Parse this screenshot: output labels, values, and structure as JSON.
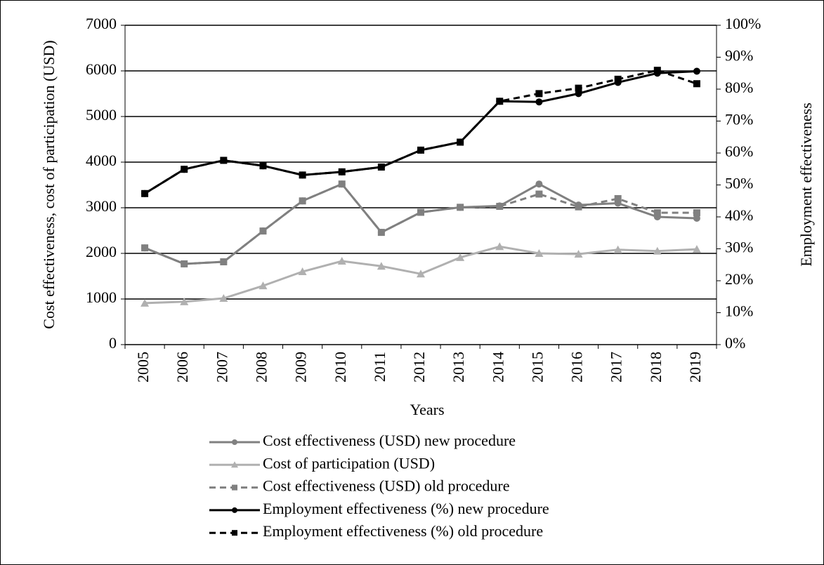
{
  "chart_data": {
    "type": "line",
    "x_label": "Years",
    "y_label": "Cost effectiveness, cost of participation (USD)",
    "y2_label": "Employment effectiveness",
    "categories": [
      "2005",
      "2006",
      "2007",
      "2008",
      "2009",
      "2010",
      "2011",
      "2012",
      "2013",
      "2014",
      "2015",
      "2016",
      "2017",
      "2018",
      "2019"
    ],
    "ylim": [
      0,
      7000
    ],
    "yticks": [
      0,
      1000,
      2000,
      3000,
      4000,
      5000,
      6000,
      7000
    ],
    "y2lim": [
      0,
      100
    ],
    "y2ticks": [
      {
        "value": 0,
        "label": "0%"
      },
      {
        "value": 10,
        "label": "10%"
      },
      {
        "value": 20,
        "label": "20%"
      },
      {
        "value": 30,
        "label": "30%"
      },
      {
        "value": 40,
        "label": "40%"
      },
      {
        "value": 50,
        "label": "50%"
      },
      {
        "value": 60,
        "label": "60%"
      },
      {
        "value": 70,
        "label": "70%"
      },
      {
        "value": 80,
        "label": "80%"
      },
      {
        "value": 90,
        "label": "90%"
      },
      {
        "value": 100,
        "label": "100%"
      }
    ],
    "grid": true,
    "series": [
      {
        "name": "Cost effectiveness (USD) new procedure",
        "color": "#808080",
        "marker": "circle",
        "dash": false,
        "values": [
          2120,
          1770,
          1815,
          2490,
          3150,
          3520,
          2460,
          2900,
          3010,
          3040,
          3520,
          3060,
          3100,
          2800,
          2770
        ]
      },
      {
        "name": "Cost of participation (USD)",
        "color": "#b0b0b0",
        "marker": "triangle",
        "dash": false,
        "values": [
          910,
          940,
          1015,
          1290,
          1600,
          1830,
          1720,
          1550,
          1910,
          2150,
          2000,
          1985,
          2080,
          2050,
          2090
        ]
      },
      {
        "name": "Cost effectiveness (USD) old procedure",
        "color": "#808080",
        "marker": "square",
        "dash": true,
        "values": [
          2120,
          1770,
          1815,
          2490,
          3150,
          3520,
          2460,
          2900,
          3010,
          3030,
          3300,
          3020,
          3200,
          2890,
          2890
        ]
      },
      {
        "name": "Employment effectiveness (%) new procedure",
        "color": "#000000",
        "marker": "circle",
        "dash": false,
        "axis": "y2",
        "values": [
          47.3,
          54.9,
          57.7,
          56,
          53.1,
          54.1,
          55.6,
          60.9,
          63.4,
          76.2,
          76,
          78.6,
          82.1,
          85,
          85.6
        ]
      },
      {
        "name": "Employment effectiveness (%) old procedure",
        "color": "#000000",
        "marker": "square",
        "dash": true,
        "axis": "y2",
        "values": [
          47.3,
          54.9,
          57.7,
          56,
          53.1,
          54.1,
          55.6,
          60.9,
          63.4,
          76.2,
          78.6,
          80.3,
          83.1,
          85.9,
          81.7
        ]
      }
    ]
  }
}
